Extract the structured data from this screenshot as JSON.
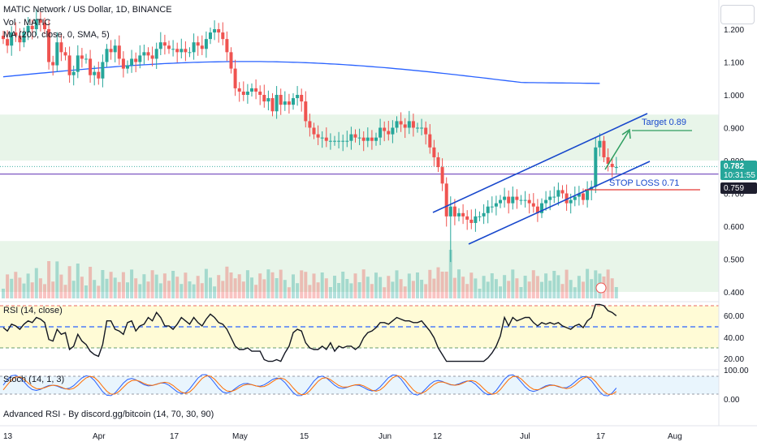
{
  "header": {
    "symbol_line": "MATIC Network / US Dollar, 1D, BINANCE",
    "volume_line": "Vol · MATIC",
    "ma_line": "MA (200, close, 0, SMA, 5)"
  },
  "right_axis": {
    "ticks": [
      "1.200",
      "1.100",
      "1.000",
      "0.900",
      "0.800",
      "0.700",
      "0.600",
      "0.500",
      "0.400"
    ],
    "last_price": "0.782",
    "countdown": "10:31:55",
    "level_price": "0.759"
  },
  "annotations": {
    "target_label": "Target 0.89",
    "stoploss_label": "STOP LOSS 0.71"
  },
  "rsi_panel": {
    "label": "RSI (14, close)",
    "ticks": [
      "60.00",
      "40.00",
      "20.00"
    ]
  },
  "stoch_panel": {
    "label": "Stoch (14, 1, 3)",
    "ticks": [
      "100.00",
      "0.00"
    ]
  },
  "footer": {
    "script_label": "Advanced RSI - By discord.gg/bitcoin (14, 70, 30, 90)"
  },
  "time_axis": {
    "labels": [
      "13",
      "Apr",
      "17",
      "May",
      "15",
      "Jun",
      "12",
      "Jul",
      "17",
      "Aug"
    ]
  },
  "colors": {
    "up": "#26a69a",
    "down": "#ef5350",
    "ma": "#2962ff",
    "channel": "#1848cc",
    "zone": "#e8f5e9",
    "purple_level": "#7e57c2",
    "stoploss": "#e53935",
    "target_arrow": "#2e9e60",
    "rsi_band": "#fff9c4",
    "stoch_band": "#e3f2fd"
  },
  "chart_data": {
    "type": "candlestick",
    "price_ylim": [
      0.4,
      1.25
    ],
    "zones": [
      [
        0.8,
        0.94
      ],
      [
        0.4,
        0.555
      ]
    ],
    "purple_level": 0.759,
    "stop_loss": 0.71,
    "target": 0.89,
    "channel_upper": [
      [
        0.64,
        0.94
      ],
      [
        0.87,
        1.16
      ]
    ],
    "channel_lower": [
      [
        0.55,
        0.84
      ],
      [
        0.58,
        1.17
      ]
    ],
    "closes": [
      1.17,
      1.15,
      1.19,
      1.18,
      1.16,
      1.19,
      1.21,
      1.2,
      1.23,
      1.22,
      1.2,
      1.1,
      1.09,
      1.16,
      1.13,
      1.12,
      1.06,
      1.07,
      1.12,
      1.11,
      1.11,
      1.06,
      1.07,
      1.05,
      1.1,
      1.14,
      1.13,
      1.15,
      1.11,
      1.08,
      1.09,
      1.11,
      1.1,
      1.12,
      1.13,
      1.12,
      1.11,
      1.14,
      1.16,
      1.15,
      1.14,
      1.14,
      1.13,
      1.14,
      1.13,
      1.13,
      1.16,
      1.15,
      1.14,
      1.17,
      1.19,
      1.2,
      1.19,
      1.17,
      1.13,
      1.08,
      1.02,
      1.01,
      1.0,
      1.01,
      1.02,
      1.01,
      1.0,
      0.98,
      0.99,
      0.95,
      1.0,
      0.97,
      0.98,
      0.97,
      0.99,
      1.0,
      0.98,
      0.92,
      0.9,
      0.88,
      0.87,
      0.87,
      0.86,
      0.86,
      0.86,
      0.86,
      0.86,
      0.86,
      0.88,
      0.87,
      0.87,
      0.86,
      0.87,
      0.86,
      0.87,
      0.9,
      0.89,
      0.88,
      0.9,
      0.92,
      0.91,
      0.9,
      0.92,
      0.9,
      0.9,
      0.9,
      0.88,
      0.84,
      0.81,
      0.78,
      0.73,
      0.63,
      0.66,
      0.63,
      0.64,
      0.63,
      0.62,
      0.61,
      0.63,
      0.63,
      0.64,
      0.66,
      0.66,
      0.67,
      0.68,
      0.69,
      0.67,
      0.69,
      0.68,
      0.68,
      0.68,
      0.67,
      0.66,
      0.64,
      0.67,
      0.68,
      0.69,
      0.69,
      0.71,
      0.7,
      0.67,
      0.68,
      0.69,
      0.7,
      0.68,
      0.71,
      0.72,
      0.84,
      0.86,
      0.81,
      0.79,
      0.78,
      0.78
    ]
  }
}
